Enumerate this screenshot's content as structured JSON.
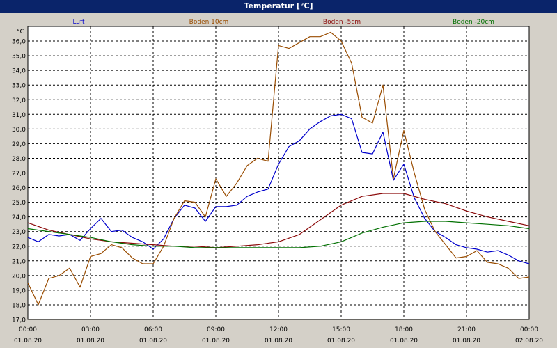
{
  "window": {
    "title": "Temperatur [°C]"
  },
  "chart_data": {
    "type": "line",
    "title": "Temperatur [°C]",
    "ylabel": "°C",
    "xlabel": "",
    "ylim": [
      17.0,
      37.0
    ],
    "y_ticks": [
      "17,0",
      "18,0",
      "19,0",
      "20,0",
      "21,0",
      "22,0",
      "23,0",
      "24,0",
      "25,0",
      "26,0",
      "27,0",
      "28,0",
      "29,0",
      "30,0",
      "31,0",
      "32,0",
      "33,0",
      "34,0",
      "35,0",
      "36,0"
    ],
    "x_ticks": [
      {
        "time": "00:00",
        "date": "01.08.20"
      },
      {
        "time": "03:00",
        "date": "01.08.20"
      },
      {
        "time": "06:00",
        "date": "01.08.20"
      },
      {
        "time": "09:00",
        "date": "01.08.20"
      },
      {
        "time": "12:00",
        "date": "01.08.20"
      },
      {
        "time": "15:00",
        "date": "01.08.20"
      },
      {
        "time": "18:00",
        "date": "01.08.20"
      },
      {
        "time": "21:00",
        "date": "01.08.20"
      },
      {
        "time": "00:00",
        "date": "02.08.20"
      }
    ],
    "grid": true,
    "series": [
      {
        "name": "Luft",
        "color": "#0000cc",
        "x": [
          0,
          0.5,
          1,
          1.5,
          2,
          2.5,
          3,
          3.5,
          4,
          4.5,
          5,
          5.5,
          6,
          6.5,
          7,
          7.5,
          8,
          8.5,
          9,
          9.5,
          10,
          10.5,
          11,
          11.5,
          12,
          12.5,
          13,
          13.5,
          14,
          14.5,
          15,
          15.5,
          16,
          16.5,
          17,
          17.5,
          18,
          18.5,
          19,
          19.5,
          20,
          20.5,
          21,
          21.5,
          22,
          22.5,
          23,
          23.5,
          24
        ],
        "values": [
          22.6,
          22.3,
          22.8,
          22.7,
          22.8,
          22.4,
          23.2,
          23.9,
          23.0,
          23.1,
          22.6,
          22.3,
          21.8,
          22.5,
          23.9,
          24.8,
          24.6,
          23.7,
          24.7,
          24.7,
          24.8,
          25.4,
          25.7,
          25.9,
          27.6,
          28.8,
          29.2,
          30.0,
          30.5,
          30.9,
          31.0,
          30.7,
          28.4,
          28.3,
          29.8,
          26.5,
          27.6,
          25.3,
          23.9,
          23.0,
          22.6,
          22.1,
          21.9,
          21.8,
          21.6,
          21.7,
          21.4,
          21.0,
          20.8
        ]
      },
      {
        "name": "Boden 10cm",
        "color": "#994c00",
        "x": [
          0,
          0.5,
          1,
          1.5,
          2,
          2.5,
          3,
          3.5,
          4,
          4.5,
          5,
          5.5,
          6,
          6.5,
          7,
          7.5,
          8,
          8.5,
          9,
          9.5,
          10,
          10.5,
          11,
          11.5,
          12,
          12.5,
          13,
          13.5,
          14,
          14.5,
          15,
          15.5,
          16,
          16.5,
          17,
          17.5,
          18,
          18.5,
          19,
          19.5,
          20,
          20.5,
          21,
          21.5,
          22,
          22.5,
          23,
          23.5,
          24
        ],
        "values": [
          19.5,
          18.0,
          19.8,
          20.0,
          20.5,
          19.2,
          21.3,
          21.5,
          22.1,
          21.9,
          21.2,
          20.8,
          20.8,
          22.0,
          23.9,
          25.1,
          25.0,
          24.0,
          26.6,
          25.4,
          26.3,
          27.5,
          28.0,
          27.8,
          35.7,
          35.5,
          35.9,
          36.3,
          36.3,
          36.6,
          36.0,
          34.5,
          30.8,
          30.4,
          33.0,
          26.6,
          29.9,
          27.0,
          24.5,
          23.0,
          22.1,
          21.2,
          21.3,
          21.7,
          20.9,
          20.8,
          20.5,
          19.8,
          19.9
        ]
      },
      {
        "name": "Boden -5cm",
        "color": "#8b0a0a",
        "x": [
          0,
          1,
          2,
          3,
          4,
          5,
          6,
          7,
          8,
          9,
          10,
          11,
          12,
          13,
          14,
          15,
          16,
          17,
          18,
          19,
          20,
          21,
          22,
          23,
          24
        ],
        "values": [
          23.6,
          23.1,
          22.8,
          22.5,
          22.3,
          22.2,
          22.1,
          22.0,
          22.0,
          21.9,
          22.0,
          22.1,
          22.3,
          22.8,
          23.8,
          24.8,
          25.4,
          25.6,
          25.6,
          25.2,
          24.9,
          24.4,
          24.0,
          23.7,
          23.4
        ]
      },
      {
        "name": "Boden -20cm",
        "color": "#007000",
        "x": [
          0,
          1,
          2,
          3,
          4,
          5,
          6,
          7,
          8,
          9,
          10,
          11,
          12,
          13,
          14,
          15,
          16,
          17,
          18,
          19,
          20,
          21,
          22,
          23,
          24
        ],
        "values": [
          23.2,
          23.0,
          22.8,
          22.6,
          22.3,
          22.1,
          22.0,
          22.0,
          21.9,
          21.9,
          21.9,
          21.9,
          21.9,
          21.9,
          22.0,
          22.3,
          22.9,
          23.3,
          23.6,
          23.7,
          23.7,
          23.6,
          23.5,
          23.4,
          23.2
        ]
      }
    ]
  }
}
